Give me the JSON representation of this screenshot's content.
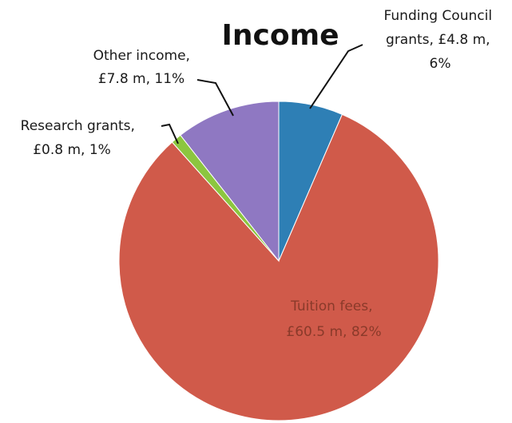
{
  "chart_data": {
    "type": "pie",
    "title": "Income",
    "start_category": "Funding Council grants",
    "slices": [
      {
        "category": "Funding Council grants",
        "value": 4.8,
        "percent": 6,
        "color": "#2e7fb5",
        "label_lines": [
          "Funding Council",
          "grants,  £4.8 m,",
          "6%"
        ]
      },
      {
        "category": "Tuition fees",
        "value": 60.5,
        "percent": 82,
        "color": "#d05a4a",
        "label_lines": [
          "Tuition fees,",
          "£60.5 m, 82%"
        ]
      },
      {
        "category": "Research grants",
        "value": 0.8,
        "percent": 1,
        "color": "#8cc63f",
        "label_lines": [
          "Research grants,",
          "£0.8 m, 1%"
        ]
      },
      {
        "category": "Other income",
        "value": 7.8,
        "percent": 11,
        "color": "#8f78c2",
        "label_lines": [
          "Other income,",
          "£7.8 m, 11%"
        ]
      }
    ],
    "units": "£ m"
  }
}
